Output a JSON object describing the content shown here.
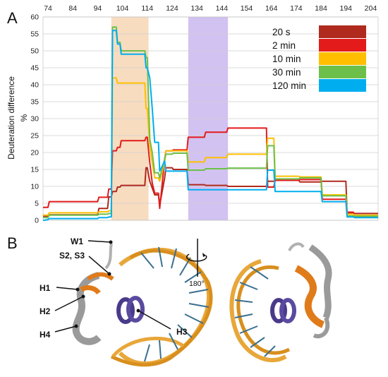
{
  "panel_a": {
    "label": "A"
  },
  "panel_b": {
    "label": "B"
  },
  "chart_data": {
    "type": "line",
    "xlabel": "",
    "ylabel": "Deuteration difference",
    "ylabel_unit": "%",
    "xlim": [
      72,
      207
    ],
    "ylim": [
      0,
      60
    ],
    "xticks": [
      74,
      84,
      94,
      104,
      114,
      124,
      134,
      144,
      154,
      164,
      174,
      184,
      194,
      204
    ],
    "yticks": [
      0,
      5,
      10,
      15,
      20,
      25,
      30,
      35,
      40,
      45,
      50,
      55,
      60
    ],
    "grid": "horizontal",
    "legend_position": "top-right",
    "shaded_regions": [
      {
        "x0": 99.5,
        "x1": 114.5,
        "color": "#f8dcc0"
      },
      {
        "x0": 130.5,
        "x1": 146.5,
        "color": "#d2c2f2"
      }
    ],
    "series": [
      {
        "name": "20 s",
        "color": "#b02a1e",
        "width": 2,
        "x": [
          72,
          72.5,
          74,
          74.5,
          94,
          94.5,
          98,
          98.5,
          99.5,
          100,
          101.5,
          102,
          103,
          103.5,
          113,
          113.5,
          114,
          115,
          116,
          117,
          118.5,
          119,
          121,
          121.5,
          124,
          124.5,
          130,
          130.5,
          137,
          137.5,
          146,
          146.5,
          162,
          162.5,
          165,
          165.5,
          175,
          175.5,
          184,
          184.5,
          194,
          194.5,
          197,
          197.5,
          207
        ],
        "y": [
          1.2,
          1.2,
          1.2,
          1.6,
          1.6,
          3.5,
          3.5,
          6.9,
          6.9,
          8.5,
          8.5,
          9.8,
          9.8,
          10.3,
          10.3,
          15.5,
          15.5,
          11.5,
          9.5,
          7.5,
          7.5,
          4.5,
          12.5,
          15.5,
          15.5,
          15.0,
          15.0,
          10.5,
          10.5,
          10.3,
          10.3,
          10.0,
          10.0,
          11.5,
          11.5,
          11.8,
          11.8,
          11.3,
          11.3,
          11.5,
          11.5,
          2.2,
          2.2,
          2.0,
          2.0
        ]
      },
      {
        "name": "2 min",
        "color": "#e31b1b",
        "width": 2,
        "x": [
          72,
          72.5,
          74,
          74.5,
          94,
          94.5,
          98,
          98.5,
          99.5,
          100,
          101.5,
          102,
          103,
          103.5,
          113,
          113.5,
          114,
          115,
          116,
          117,
          118.5,
          119,
          121,
          121.5,
          124,
          124.5,
          130,
          130.5,
          137,
          137.5,
          146,
          146.5,
          162,
          162.5,
          165,
          165.5,
          175,
          175.5,
          184,
          184.5,
          194,
          194.5,
          197,
          197.5,
          207
        ],
        "y": [
          3.8,
          3.8,
          3.8,
          5.5,
          5.5,
          6.8,
          6.8,
          9.2,
          9.2,
          20.5,
          20.5,
          21.5,
          21.5,
          23.5,
          23.5,
          24.5,
          24.5,
          17.0,
          11.0,
          8.0,
          8.0,
          3.5,
          18.0,
          20.5,
          20.5,
          20.8,
          20.8,
          24.5,
          24.5,
          26.0,
          26.0,
          27.2,
          27.2,
          9.8,
          9.8,
          11.8,
          11.8,
          12.0,
          12.0,
          6.2,
          6.2,
          2.4,
          2.4,
          1.0,
          1.0
        ]
      },
      {
        "name": "10 min",
        "color": "#ffbf00",
        "width": 2,
        "x": [
          72,
          72.5,
          74,
          74.5,
          94,
          94.5,
          98,
          98.5,
          99.5,
          100,
          101.5,
          102,
          103,
          103.5,
          113,
          113.5,
          114,
          115,
          116,
          117,
          118.5,
          119,
          121,
          121.5,
          124,
          124.5,
          130,
          130.5,
          137,
          137.5,
          146,
          146.5,
          162,
          162.5,
          165,
          165.5,
          175,
          175.5,
          184,
          184.5,
          194,
          194.5,
          197,
          197.5,
          207
        ],
        "y": [
          1.5,
          1.5,
          1.5,
          2.2,
          2.2,
          2.5,
          2.5,
          2.8,
          2.8,
          42.0,
          42.0,
          40.5,
          40.5,
          40.5,
          40.5,
          33.0,
          33.0,
          22.0,
          17.0,
          12.5,
          12.5,
          11.5,
          17.0,
          20.5,
          20.5,
          20.5,
          20.5,
          17.2,
          17.2,
          18.5,
          18.5,
          19.5,
          19.5,
          24.2,
          24.2,
          13.0,
          13.0,
          12.8,
          12.8,
          7.5,
          7.5,
          1.8,
          1.8,
          1.5,
          1.5
        ]
      },
      {
        "name": "30 min",
        "color": "#6cc04a",
        "width": 2,
        "x": [
          72,
          72.5,
          74,
          74.5,
          94,
          94.5,
          98,
          98.5,
          99.5,
          100,
          101.5,
          102,
          103,
          103.5,
          113,
          113.5,
          114,
          115,
          116,
          117,
          118.5,
          119,
          121,
          121.5,
          124,
          124.5,
          130,
          130.5,
          137,
          137.5,
          146,
          146.5,
          162,
          162.5,
          165,
          165.5,
          175,
          175.5,
          184,
          184.5,
          194,
          194.5,
          197,
          197.5,
          207
        ],
        "y": [
          0.8,
          0.8,
          0.8,
          1.5,
          1.5,
          1.8,
          1.8,
          2.0,
          2.0,
          57.0,
          57.0,
          52.5,
          52.5,
          50.0,
          50.0,
          48.0,
          48.0,
          24.0,
          20.0,
          14.0,
          14.0,
          12.5,
          18.0,
          19.5,
          19.5,
          19.8,
          19.8,
          14.8,
          14.8,
          15.2,
          15.2,
          15.4,
          15.4,
          22.0,
          22.0,
          12.2,
          12.2,
          12.5,
          12.5,
          7.2,
          7.2,
          1.3,
          1.3,
          1.2,
          1.2
        ]
      },
      {
        "name": "120 min",
        "color": "#00aeef",
        "width": 2,
        "x": [
          72,
          72.5,
          74,
          74.5,
          94,
          94.5,
          98,
          98.5,
          99.5,
          100,
          101.5,
          102,
          103,
          103.5,
          113,
          113.5,
          114,
          115,
          116,
          117,
          118.5,
          119,
          121,
          121.5,
          124,
          124.5,
          130,
          130.5,
          137,
          137.5,
          146,
          146.5,
          162,
          162.5,
          165,
          165.5,
          175,
          175.5,
          184,
          184.5,
          194,
          194.5,
          197,
          197.5,
          207
        ],
        "y": [
          0.0,
          0.0,
          0.2,
          0.5,
          0.5,
          0.8,
          0.8,
          1.0,
          1.0,
          56.0,
          56.0,
          52.0,
          52.0,
          49.0,
          49.0,
          45.0,
          45.0,
          42.0,
          33.0,
          23.0,
          23.0,
          14.5,
          17.5,
          14.5,
          14.5,
          14.5,
          14.5,
          9.0,
          9.0,
          9.0,
          9.0,
          9.0,
          9.0,
          14.8,
          14.8,
          8.5,
          8.5,
          8.5,
          8.5,
          5.5,
          5.5,
          1.0,
          1.0,
          0.8,
          0.8
        ]
      }
    ]
  },
  "structure_labels": {
    "w1": "W1",
    "s2s3": "S2, S3",
    "h1": "H1",
    "h2": "H2",
    "h3": "H3",
    "h4": "H4",
    "rotation": "180°"
  }
}
